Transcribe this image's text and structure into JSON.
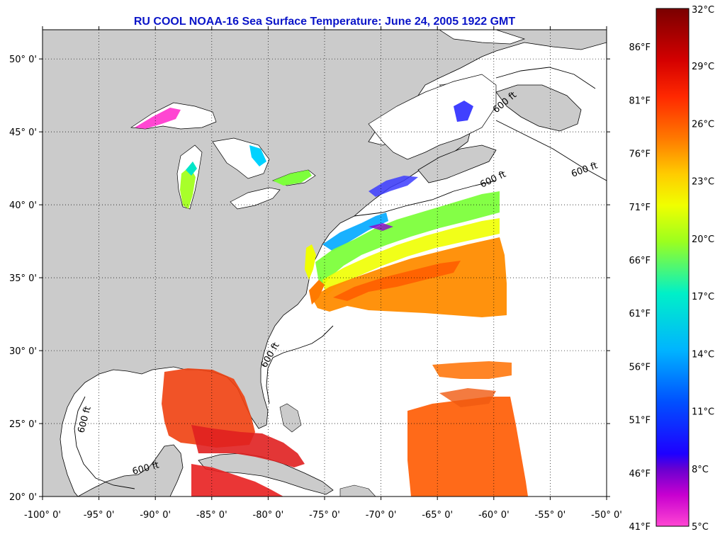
{
  "title": "RU COOL  NOAA-16  Sea Surface Temperature:  June 24, 2005 1922 GMT",
  "map": {
    "lon_ticks": [
      "-100° 0'",
      "-95° 0'",
      "-90° 0'",
      "-85° 0'",
      "-80° 0'",
      "-75° 0'",
      "-70° 0'",
      "-65° 0'",
      "-60° 0'",
      "-55° 0'",
      "-50° 0'"
    ],
    "lat_ticks": [
      "50° 0'",
      "45° 0'",
      "40° 0'",
      "35° 0'",
      "30° 0'",
      "25° 0'",
      "20° 0'"
    ],
    "lon_range": [
      -100,
      -50
    ],
    "lat_range": [
      20,
      52
    ],
    "grid": "dotted",
    "land_color": "#cbcbcb",
    "no_data_color": "#ffffff",
    "isobath_labels": [
      "600 ft",
      "600 ft",
      "600 ft",
      "600 ft",
      "600 ft",
      "600 ft"
    ]
  },
  "colorbar": {
    "celsius_labels": [
      "32°C",
      "29°C",
      "26°C",
      "23°C",
      "20°C",
      "17°C",
      "14°C",
      "11°C",
      "8°C",
      "5°C"
    ],
    "fahrenheit_labels": [
      "86°F",
      "81°F",
      "76°F",
      "71°F",
      "66°F",
      "61°F",
      "56°F",
      "51°F",
      "46°F",
      "41°F"
    ],
    "range_c": [
      5,
      32
    ],
    "colors_top_to_bottom": [
      "#7a0000",
      "#d40000",
      "#ff3000",
      "#ff8c00",
      "#ffd200",
      "#e6ff00",
      "#7dff3c",
      "#00f0d0",
      "#00b4ff",
      "#0050ff",
      "#1e00ff",
      "#6a00d0",
      "#b400d0",
      "#ff3cd2"
    ]
  }
}
